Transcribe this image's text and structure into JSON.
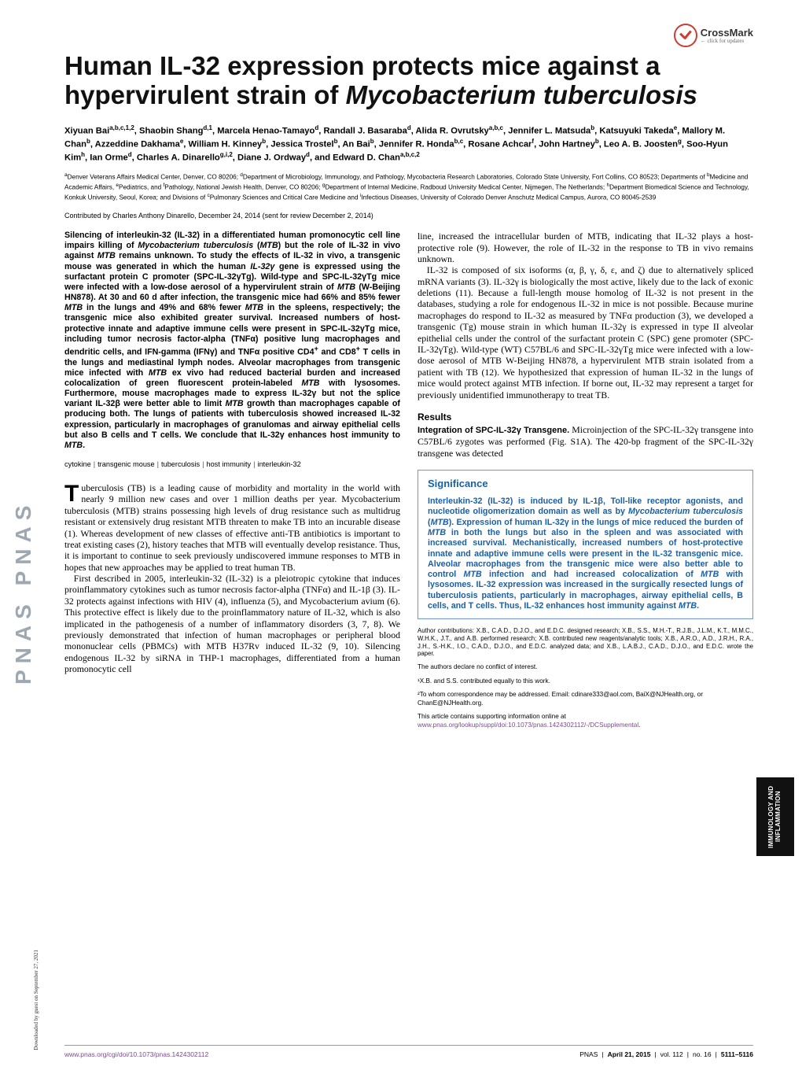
{
  "crossmark": {
    "label": "CrossMark",
    "sub": "click for updates"
  },
  "pnas_side": "PNAS  PNAS",
  "download_note": "Downloaded by guest on September 27, 2021",
  "vertical_label": "IMMUNOLOGY AND INFLAMMATION",
  "title_plain": "Human IL-32 expression protects mice against a hypervirulent strain of ",
  "title_ital": "Mycobacterium tuberculosis",
  "authors_html": "Xiyuan Bai<sup>a,b,c,1,2</sup>, Shaobin Shang<sup>d,1</sup>, Marcela Henao-Tamayo<sup>d</sup>, Randall J. Basaraba<sup>d</sup>, Alida R. Ovrutsky<sup>a,b,c</sup>, Jennifer L. Matsuda<sup>b</sup>, Katsuyuki Takeda<sup>e</sup>, Mallory M. Chan<sup>b</sup>, Azzeddine Dakhama<sup>e</sup>, William H. Kinney<sup>b</sup>, Jessica Trostel<sup>b</sup>, An Bai<sup>b</sup>, Jennifer R. Honda<sup>b,c</sup>, Rosane Achcar<sup>f</sup>, John Hartney<sup>b</sup>, Leo A. B. Joosten<sup>g</sup>, Soo-Hyun Kim<sup>h</sup>, Ian Orme<sup>d</sup>, Charles A. Dinarello<sup>g,i,2</sup>, Diane J. Ordway<sup>d</sup>, and Edward D. Chan<sup>a,b,c,2</sup>",
  "affiliations_html": "<sup>a</sup>Denver Veterans Affairs Medical Center, Denver, CO 80206; <sup>d</sup>Department of Microbiology, Immunology, and Pathology, Mycobacteria Research Laboratories, Colorado State University, Fort Collins, CO 80523; Departments of <sup>b</sup>Medicine and Academic Affairs, <sup>e</sup>Pediatrics, and <sup>f</sup>Pathology, National Jewish Health, Denver, CO 80206; <sup>g</sup>Department of Internal Medicine, Radboud University Medical Center, Nijmegen, The Netherlands; <sup>h</sup>Department Biomedical Science and Technology, Konkuk University, Seoul, Korea; and Divisions of <sup>c</sup>Pulmonary Sciences and Critical Care Medicine and <sup>i</sup>Infectious Diseases, University of Colorado Denver Anschutz Medical Campus, Aurora, CO 80045-2539",
  "contributed": "Contributed by Charles Anthony Dinarello, December 24, 2014 (sent for review December 2, 2014)",
  "abstract_html": "Silencing of interleukin-32 (IL-32) in a differentiated human promonocytic cell line impairs killing of <span class='ital'>Mycobacterium tuberculosis</span> (<span class='ital'>MTB</span>) but the role of IL-32 in vivo against <span class='ital'>MTB</span> remains unknown. To study the effects of IL-32 in vivo, a transgenic mouse was generated in which the human <span class='ital'>IL-32γ</span> gene is expressed using the surfactant protein C promoter (SPC-IL-32γTg). Wild-type and SPC-IL-32γTg mice were infected with a low-dose aerosol of a hypervirulent strain of <span class='ital'>MTB</span> (W-Beijing HN878). At 30 and 60 d after infection, the transgenic mice had 66% and 85% fewer <span class='ital'>MTB</span> in the lungs and 49% and 68% fewer <span class='ital'>MTB</span> in the spleens, respectively; the transgenic mice also exhibited greater survival. Increased numbers of host-protective innate and adaptive immune cells were present in SPC-IL-32γTg mice, including tumor necrosis factor-alpha (TNFα) positive lung macrophages and dendritic cells, and IFN-gamma (IFNγ) and TNFα positive CD4<sup>+</sup> and CD8<sup>+</sup> T cells in the lungs and mediastinal lymph nodes. Alveolar macrophages from transgenic mice infected with <span class='ital'>MTB</span> ex vivo had reduced bacterial burden and increased colocalization of green fluorescent protein-labeled <span class='ital'>MTB</span> with lysosomes. Furthermore, mouse macrophages made to express IL-32γ but not the splice variant IL-32β were better able to limit <span class='ital'>MTB</span> growth than macrophages capable of producing both. The lungs of patients with tuberculosis showed increased IL-32 expression, particularly in macrophages of granulomas and airway epithelial cells but also B cells and T cells. We conclude that IL-32γ enhances host immunity to <span class='ital'>MTB</span>.",
  "keywords": [
    "cytokine",
    "transgenic mouse",
    "tuberculosis",
    "host immunity",
    "interleukin-32"
  ],
  "intro_first_letter": "T",
  "intro_p1": "uberculosis (TB) is a leading cause of morbidity and mortality in the world with nearly 9 million new cases and over 1 million deaths per year. Mycobacterium tuberculosis (MTB) strains possessing high levels of drug resistance such as multidrug resistant or extensively drug resistant MTB threaten to make TB into an incurable disease (1). Whereas development of new classes of effective anti-TB antibiotics is important to treat existing cases (2), history teaches that MTB will eventually develop resistance. Thus, it is important to continue to seek previously undiscovered immune responses to MTB in hopes that new approaches may be applied to treat human TB.",
  "intro_p2": "First described in 2005, interleukin-32 (IL-32) is a pleiotropic cytokine that induces proinflammatory cytokines such as tumor necrosis factor-alpha (TNFα) and IL-1β (3). IL-32 protects against infections with HIV (4), influenza (5), and Mycobacterium avium (6). This protective effect is likely due to the proinflammatory nature of IL-32, which is also implicated in the pathogenesis of a number of inflammatory disorders (3, 7, 8). We previously demonstrated that infection of human macrophages or peripheral blood mononuclear cells (PBMCs) with MTB H37Rv induced IL-32 (9, 10). Silencing endogenous IL-32 by siRNA in THP-1 macrophages, differentiated from a human promonocytic cell",
  "col2_p1": "line, increased the intracellular burden of MTB, indicating that IL-32 plays a host-protective role (9). However, the role of IL-32 in the response to TB in vivo remains unknown.",
  "col2_p2": "IL-32 is composed of six isoforms (α, β, γ, δ, ε, and ζ) due to alternatively spliced mRNA variants (3). IL-32γ is biologically the most active, likely due to the lack of exonic deletions (11). Because a full-length mouse homolog of IL-32 is not present in the databases, studying a role for endogenous IL-32 in mice is not possible. Because murine macrophages do respond to IL-32 as measured by TNFα production (3), we developed a transgenic (Tg) mouse strain in which human IL-32γ is expressed in type II alveolar epithelial cells under the control of the surfactant protein C (SPC) gene promoter (SPC-IL-32γTg). Wild-type (WT) C57BL/6 and SPC-IL-32γTg mice were infected with a low-dose aerosol of MTB W-Beijing HN878, a hypervirulent MTB strain isolated from a patient with TB (12). We hypothesized that expression of human IL-32 in the lungs of mice would protect against MTB infection. If borne out, IL-32 may represent a target for previously unidentified immunotherapy to treat TB.",
  "results_head": "Results",
  "results_sub_head": "Integration of SPC-IL-32γ Transgene.",
  "results_text": " Microinjection of the SPC-IL-32γ transgene into C57BL/6 zygotes was performed (Fig. S1A). The 420-bp fragment of the SPC-IL-32γ transgene was detected",
  "significance": {
    "title": "Significance",
    "text_html": "Interleukin-32 (IL-32) is induced by IL-1β, Toll-like receptor agonists, and nucleotide oligomerization domain as well as by <span class='ital'>Mycobacterium tuberculosis</span> (<span class='ital'>MTB</span>). Expression of human IL-32γ in the lungs of mice reduced the burden of <span class='ital'>MTB</span> in both the lungs but also in the spleen and was associated with increased survival. Mechanistically, increased numbers of host-protective innate and adaptive immune cells were present in the IL-32 transgenic mice. Alveolar macrophages from the transgenic mice were also better able to control <span class='ital'>MTB</span> infection and had increased colocalization of <span class='ital'>MTB</span> with lysosomes. IL-32 expression was increased in the surgically resected lungs of tuberculosis patients, particularly in macrophages, airway epithelial cells, B cells, and T cells. Thus, IL-32 enhances host immunity against <span class='ital'>MTB</span>."
  },
  "author_contrib": "Author contributions: X.B., C.A.D., D.J.O., and E.D.C. designed research; X.B., S.S., M.H.-T., R.J.B., J.L.M., K.T., M.M.C., W.H.K., J.T., and A.B. performed research; X.B. contributed new reagents/analytic tools; X.B., A.R.O., A.D., J.R.H., R.A., J.H., S.-H.K., I.O., C.A.D., D.J.O., and E.D.C. analyzed data; and X.B., L.A.B.J., C.A.D., D.J.O., and E.D.C. wrote the paper.",
  "conflict": "The authors declare no conflict of interest.",
  "equal_note": "¹X.B. and S.S. contributed equally to this work.",
  "corresp": "²To whom correspondence may be addressed. Email: cdinare333@aol.com, BaiX@NJHealth.org, or ChanE@NJHealth.org.",
  "suppl_lead": "This article contains supporting information online at ",
  "suppl_link": "www.pnas.org/lookup/suppl/doi:10.1073/pnas.1424302112/-/DCSupplemental",
  "footer": {
    "doi": "www.pnas.org/cgi/doi/10.1073/pnas.1424302112",
    "journal": "PNAS",
    "date": "April 21, 2015",
    "vol": "vol. 112",
    "no": "no. 16",
    "pages": "5111–5116"
  },
  "colors": {
    "link": "#7b4b8f",
    "sig_border": "#6b9bd1",
    "sig_text": "#1a5fa5",
    "side_gray": "#9ea8b2"
  }
}
